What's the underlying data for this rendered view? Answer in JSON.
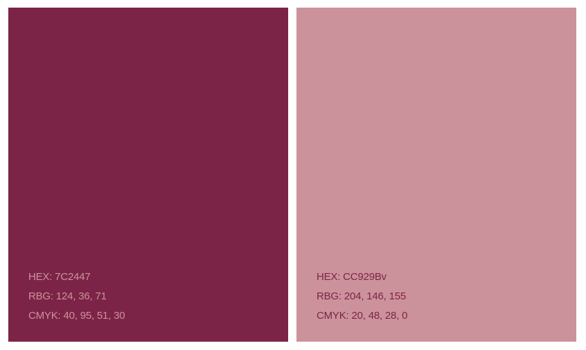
{
  "swatches": [
    {
      "color": "#7C2447",
      "text_color": "#CC929B",
      "hex_text": "HEX: 7C2447",
      "rgb_text": "RBG: 124, 36, 71",
      "cmyk_text": "CMYK: 40, 95, 51, 30"
    },
    {
      "color": "#CC929B",
      "text_color": "#7C2447",
      "hex_text": "HEX: CC929Bv",
      "rgb_text": "RBG: 204, 146, 155",
      "cmyk_text": "CMYK: 20, 48, 28, 0"
    }
  ]
}
